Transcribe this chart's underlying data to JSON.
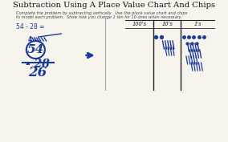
{
  "title": "Subtraction Using A Place Value Chart And Chips",
  "subtitle_line1": "Complete the problem by subtracting vertically.  Use the place value chart and chips",
  "subtitle_line2": "to model each problem.  Show how you change 1 ten for 10 ones when necessary.",
  "problem_label": "54 - 28 =",
  "subtrahend": "- 28",
  "answer": "26",
  "col_labels": [
    "100's",
    "10's",
    "1's"
  ],
  "background_color": "#f7f4ee",
  "ink_color": "#1a3a9a",
  "title_color": "#111111",
  "subtitle_color": "#444444",
  "chart_color": "#222222"
}
